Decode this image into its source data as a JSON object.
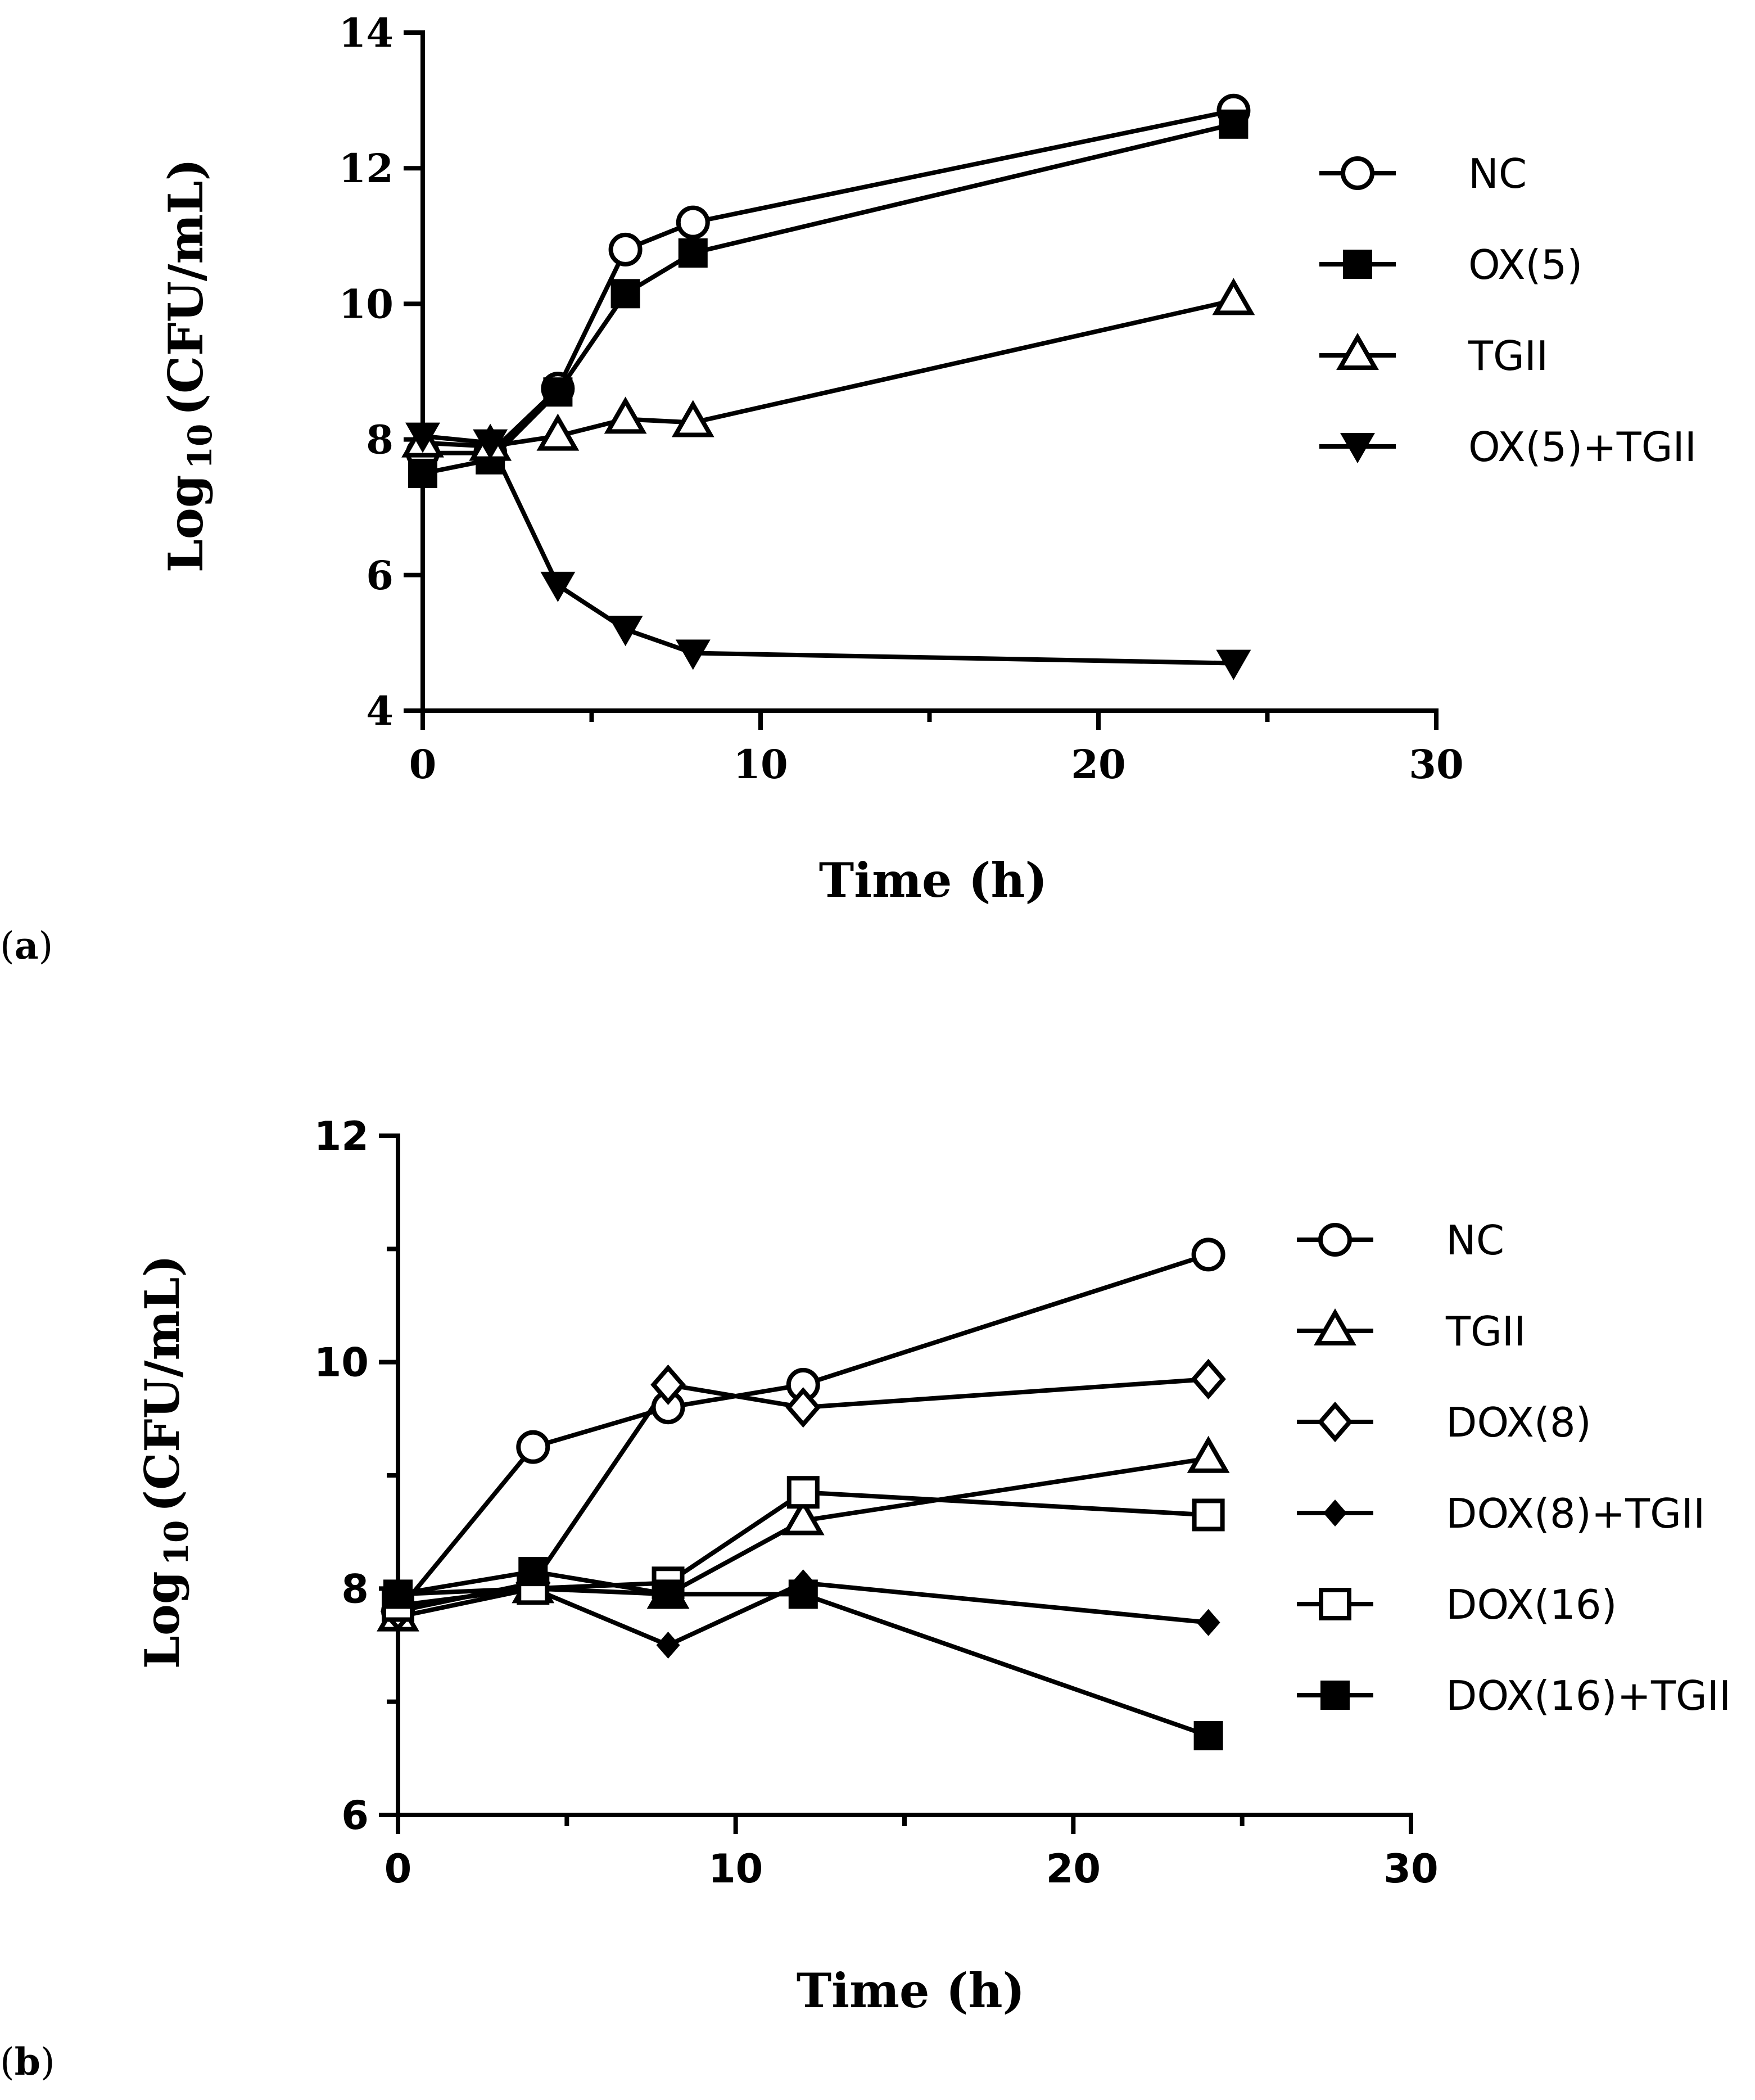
{
  "chart_data": [
    {
      "type": "line",
      "panel_label_open": "(",
      "panel_label_letter": "a",
      "panel_label_close": ")",
      "xlabel": "Time (h)",
      "ylabel_prefix": "Log",
      "ylabel_sub": "10",
      "ylabel_suffix": "(CFU/mL)",
      "xlim": [
        0,
        30
      ],
      "ylim": [
        4,
        14
      ],
      "xticks": [
        0,
        10,
        20,
        30
      ],
      "xminor": [
        5,
        15,
        25
      ],
      "yticks": [
        4,
        6,
        8,
        10,
        12,
        14
      ],
      "yminor": [],
      "series": [
        {
          "name": "NC",
          "marker": "circle-open",
          "x": [
            0,
            2,
            4,
            6,
            8,
            24
          ],
          "y": [
            7.8,
            7.8,
            8.75,
            10.8,
            11.2,
            12.85
          ]
        },
        {
          "name": "OX(5)",
          "marker": "square-filled",
          "x": [
            0,
            2,
            4,
            6,
            8,
            24
          ],
          "y": [
            7.5,
            7.7,
            8.7,
            10.15,
            10.75,
            12.65
          ]
        },
        {
          "name": "TGII",
          "marker": "triangle-up-open",
          "x": [
            0,
            2,
            4,
            6,
            8,
            24
          ],
          "y": [
            7.95,
            7.9,
            8.05,
            8.3,
            8.25,
            10.05
          ]
        },
        {
          "name": "OX(5)+TGII",
          "marker": "triangle-down-filled",
          "x": [
            0,
            2,
            4,
            6,
            8,
            24
          ],
          "y": [
            8.05,
            7.95,
            5.85,
            5.2,
            4.85,
            4.7
          ]
        }
      ]
    },
    {
      "type": "line",
      "panel_label_open": "(",
      "panel_label_letter": "b",
      "panel_label_close": ")",
      "xlabel": "Time (h)",
      "ylabel_prefix": "Log",
      "ylabel_sub": "10",
      "ylabel_suffix": "(CFU/mL)",
      "xlim": [
        0,
        30
      ],
      "ylim": [
        6,
        12
      ],
      "xticks": [
        0,
        10,
        20,
        30
      ],
      "xminor": [
        5,
        15,
        25
      ],
      "yticks": [
        6,
        8,
        10,
        12
      ],
      "yminor": [
        7,
        9,
        11
      ],
      "series": [
        {
          "name": "NC",
          "marker": "circle-open",
          "x": [
            0,
            4,
            8,
            12,
            24
          ],
          "y": [
            7.8,
            9.25,
            9.6,
            9.8,
            10.95
          ]
        },
        {
          "name": "TGII",
          "marker": "triangle-up-open",
          "x": [
            0,
            4,
            8,
            12,
            24
          ],
          "y": [
            7.75,
            8.0,
            7.95,
            8.6,
            9.15
          ]
        },
        {
          "name": "DOX(8)",
          "marker": "diamond-open",
          "x": [
            0,
            4,
            8,
            12,
            24
          ],
          "y": [
            7.8,
            8.05,
            9.8,
            9.6,
            9.85
          ]
        },
        {
          "name": "DOX(8)+TGII",
          "marker": "diamond-filled",
          "x": [
            0,
            4,
            8,
            12,
            24
          ],
          "y": [
            7.95,
            8.0,
            7.5,
            8.05,
            7.7
          ]
        },
        {
          "name": "DOX(16)",
          "marker": "square-open",
          "x": [
            0,
            4,
            8,
            12,
            24
          ],
          "y": [
            7.85,
            8.0,
            8.05,
            8.85,
            8.65
          ]
        },
        {
          "name": "DOX(16)+TGII",
          "marker": "square-filled",
          "x": [
            0,
            4,
            8,
            12,
            24
          ],
          "y": [
            7.95,
            8.15,
            7.95,
            7.95,
            6.7
          ]
        }
      ]
    }
  ]
}
